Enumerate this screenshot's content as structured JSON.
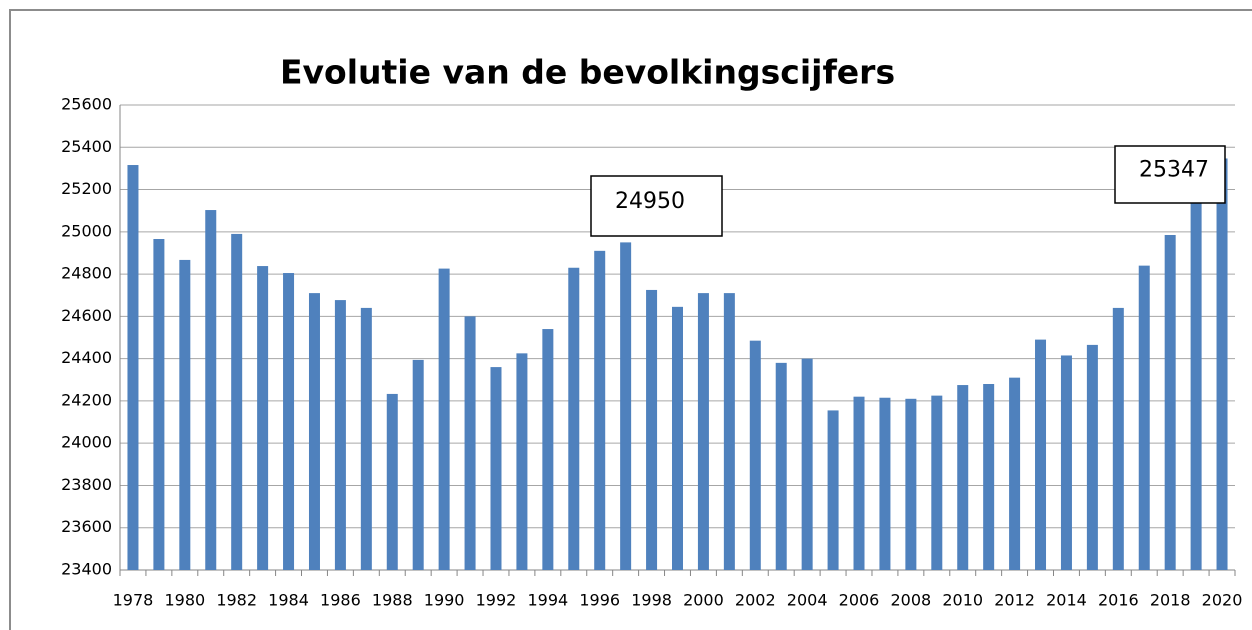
{
  "chart_data": {
    "type": "bar",
    "title": "Evolutie van de bevolkingscijfers",
    "categories": [
      "1978",
      null,
      "1980",
      null,
      "1982",
      null,
      "1984",
      null,
      "1986",
      null,
      "1988",
      null,
      "1990",
      null,
      "1992",
      null,
      "1994",
      null,
      "1996",
      null,
      "1998",
      null,
      "2000",
      null,
      "2002",
      null,
      "2004",
      null,
      "2006",
      null,
      "2008",
      null,
      "2010",
      null,
      "2012",
      null,
      "2014",
      null,
      "2016",
      null,
      "2018",
      null,
      "2020"
    ],
    "values": [
      25316,
      24966,
      24867,
      25103,
      24990,
      24838,
      24805,
      24710,
      24677,
      24640,
      24233,
      24394,
      24826,
      24600,
      24360,
      24425,
      24540,
      24830,
      24910,
      24950,
      24725,
      24645,
      24710,
      24710,
      24485,
      24380,
      24400,
      24155,
      24220,
      24215,
      24210,
      24225,
      24275,
      24280,
      24310,
      24490,
      24415,
      24465,
      24640,
      24840,
      24985,
      25180,
      25347
    ],
    "color": "#4f81bd",
    "ylim": [
      23400,
      25600
    ],
    "yticks": [
      23400,
      23600,
      23800,
      24000,
      24200,
      24400,
      24600,
      24800,
      25000,
      25200,
      25400,
      25600
    ],
    "grid": true,
    "annotations": [
      "24950",
      "25347"
    ]
  }
}
